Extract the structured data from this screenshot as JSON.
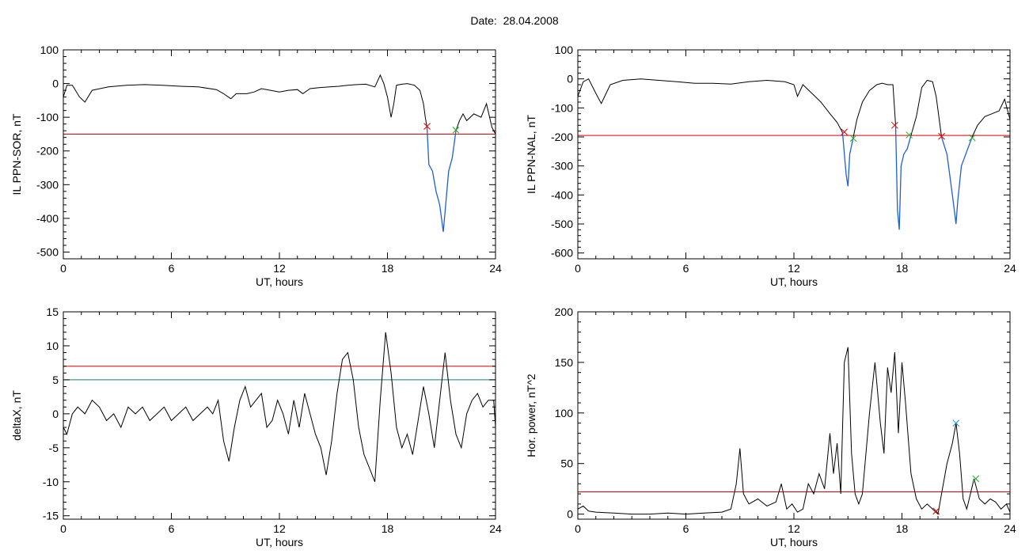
{
  "header": {
    "date_label": "Date:",
    "date_value": "28.04.2008"
  },
  "chart_data": [
    {
      "type": "line",
      "panel": "top-left",
      "xlabel": "UT, hours",
      "ylabel": "IL PPN-SOR, nT",
      "xlim": [
        0,
        24
      ],
      "ylim": [
        -520,
        100
      ],
      "xticks": [
        0,
        6,
        12,
        18,
        24
      ],
      "yticks": [
        100,
        0,
        -100,
        -200,
        -300,
        -400,
        -500
      ],
      "ytick_labels": [
        "100",
        "0",
        "-100",
        "-200",
        "-300",
        "-400",
        "-500"
      ],
      "threshold_lines": [
        {
          "y": -150,
          "color": "#e00000"
        }
      ],
      "series": [
        {
          "color": "#000000",
          "x": [
            0,
            0.2,
            0.5,
            0.9,
            1.2,
            1.6,
            2.5,
            3.5,
            4.5,
            5.5,
            6.5,
            7.5,
            8.5,
            8.9,
            9.3,
            9.6,
            10.2,
            10.6,
            11.0,
            11.5,
            12.0,
            12.5,
            13.0,
            13.3,
            13.7,
            14.2,
            14.8,
            15.3,
            15.8,
            16.3,
            16.8,
            17.3,
            17.6,
            17.8,
            18.0,
            18.2,
            18.35,
            18.5,
            18.8,
            19.1,
            19.5,
            19.8,
            20.0,
            20.1,
            20.2
          ],
          "y": [
            -40,
            -5,
            -5,
            -40,
            -55,
            -20,
            -10,
            -5,
            -3,
            -5,
            -8,
            -10,
            -18,
            -30,
            -45,
            -30,
            -30,
            -25,
            -15,
            -20,
            -25,
            -20,
            -18,
            -30,
            -15,
            -12,
            -10,
            -8,
            -5,
            -3,
            -2,
            -10,
            25,
            0,
            -40,
            -100,
            -60,
            -5,
            -2,
            0,
            -5,
            -20,
            -60,
            -100,
            -130
          ]
        },
        {
          "color": "#1f5fd6",
          "x": [
            20.2,
            20.3,
            20.5,
            20.7,
            20.9,
            21.0,
            21.1,
            21.2,
            21.4,
            21.6,
            21.8
          ],
          "y": [
            -130,
            -240,
            -260,
            -320,
            -360,
            -400,
            -440,
            -380,
            -260,
            -220,
            -140
          ]
        },
        {
          "color": "#000000",
          "x": [
            21.8,
            22.0,
            22.2,
            22.4,
            22.8,
            23.2,
            23.5,
            23.8,
            24.0
          ],
          "y": [
            -140,
            -110,
            -90,
            -110,
            -90,
            -100,
            -60,
            -130,
            -150
          ]
        }
      ],
      "markers": [
        {
          "x": 20.2,
          "y": -127,
          "color": "#e00000"
        },
        {
          "x": 21.8,
          "y": -138,
          "color": "#20b020"
        }
      ]
    },
    {
      "type": "line",
      "panel": "top-right",
      "xlabel": "UT, hours",
      "ylabel": "IL PPN-NAL, nT",
      "xlim": [
        0,
        24
      ],
      "ylim": [
        -620,
        100
      ],
      "xticks": [
        0,
        6,
        12,
        18,
        24
      ],
      "yticks": [
        100,
        0,
        -100,
        -200,
        -300,
        -400,
        -500,
        -600
      ],
      "ytick_labels": [
        "100",
        "0",
        "-100",
        "-200",
        "-300",
        "-400",
        "-500",
        "-600"
      ],
      "threshold_lines": [
        {
          "y": -195,
          "color": "#e00000"
        }
      ],
      "series": [
        {
          "color": "#000000",
          "x": [
            0,
            0.3,
            0.6,
            1.0,
            1.3,
            1.8,
            2.5,
            3.5,
            4.5,
            5.5,
            6.5,
            7.5,
            8.5,
            9.5,
            10.5,
            11.5,
            12.0,
            12.2,
            12.5,
            13.0,
            13.5,
            14.0,
            14.4,
            14.7
          ],
          "y": [
            -60,
            -10,
            0,
            -50,
            -85,
            -20,
            -5,
            0,
            -5,
            -10,
            -15,
            -15,
            -18,
            -10,
            -5,
            -10,
            -20,
            -60,
            -20,
            -50,
            -80,
            -120,
            -150,
            -185
          ]
        },
        {
          "color": "#1f5fd6",
          "x": [
            14.7,
            14.9,
            15.0,
            15.1,
            15.3
          ],
          "y": [
            -185,
            -330,
            -370,
            -260,
            -200
          ]
        },
        {
          "color": "#000000",
          "x": [
            15.3,
            15.5,
            15.8,
            16.2,
            16.6,
            16.9,
            17.2,
            17.5,
            17.65
          ],
          "y": [
            -200,
            -140,
            -80,
            -40,
            -20,
            -15,
            -20,
            -20,
            -160
          ]
        },
        {
          "color": "#1f5fd6",
          "x": [
            17.65,
            17.75,
            17.85,
            17.95,
            18.1,
            18.3,
            18.5
          ],
          "y": [
            -160,
            -450,
            -520,
            -300,
            -260,
            -240,
            -195
          ]
        },
        {
          "color": "#000000",
          "x": [
            18.5,
            18.8,
            19.1,
            19.4,
            19.7,
            19.9,
            20.2
          ],
          "y": [
            -195,
            -130,
            -30,
            -5,
            -10,
            -60,
            -200
          ]
        },
        {
          "color": "#1f5fd6",
          "x": [
            20.2,
            20.5,
            20.8,
            21.0,
            21.1,
            21.3,
            21.6,
            21.9
          ],
          "y": [
            -200,
            -260,
            -400,
            -500,
            -420,
            -300,
            -250,
            -200
          ]
        },
        {
          "color": "#000000",
          "x": [
            21.9,
            22.2,
            22.6,
            23.0,
            23.4,
            23.7,
            24.0
          ],
          "y": [
            -200,
            -160,
            -130,
            -120,
            -110,
            -70,
            -140
          ]
        }
      ],
      "markers": [
        {
          "x": 14.8,
          "y": -183,
          "color": "#e00000"
        },
        {
          "x": 15.3,
          "y": -205,
          "color": "#20b020"
        },
        {
          "x": 17.6,
          "y": -160,
          "color": "#e00000"
        },
        {
          "x": 18.4,
          "y": -193,
          "color": "#20b020"
        },
        {
          "x": 20.2,
          "y": -198,
          "color": "#e00000"
        },
        {
          "x": 21.9,
          "y": -203,
          "color": "#20b020"
        }
      ]
    },
    {
      "type": "line",
      "panel": "bottom-left",
      "xlabel": "UT, hours",
      "ylabel": "deltaX, nT",
      "xlim": [
        0,
        24
      ],
      "ylim": [
        -15.5,
        15
      ],
      "xticks": [
        0,
        6,
        12,
        18,
        24
      ],
      "yticks": [
        15,
        10,
        5,
        0,
        -5,
        -10,
        -15
      ],
      "ytick_labels": [
        "15",
        "10",
        "5",
        "0",
        "-5",
        "-10",
        "-15"
      ],
      "threshold_lines": [
        {
          "y": 7,
          "color": "#e00000"
        },
        {
          "y": 5,
          "color": "#108080"
        }
      ],
      "series": [
        {
          "color": "#000000",
          "x": [
            0,
            0.2,
            0.5,
            0.8,
            1.2,
            1.6,
            2.0,
            2.4,
            2.8,
            3.2,
            3.6,
            4.0,
            4.4,
            4.8,
            5.2,
            5.6,
            6.0,
            6.4,
            6.8,
            7.2,
            7.6,
            8.0,
            8.3,
            8.6,
            8.9,
            9.2,
            9.5,
            9.8,
            10.1,
            10.4,
            10.7,
            11.0,
            11.3,
            11.6,
            11.9,
            12.2,
            12.5,
            12.8,
            13.1,
            13.4,
            13.7,
            14.0,
            14.3,
            14.6,
            14.9,
            15.2,
            15.5,
            15.8,
            16.1,
            16.4,
            16.7,
            17.0,
            17.3,
            17.6,
            17.9,
            18.2,
            18.5,
            18.8,
            19.1,
            19.4,
            19.7,
            20.0,
            20.3,
            20.6,
            20.9,
            21.2,
            21.5,
            21.8,
            22.1,
            22.4,
            22.7,
            23.0,
            23.3,
            23.6,
            23.9,
            24.0
          ],
          "y": [
            -2,
            -3,
            0,
            1,
            0,
            2,
            1,
            -1,
            0,
            -2,
            1,
            0,
            1,
            -1,
            0,
            1,
            -1,
            0,
            1,
            -1,
            0,
            1,
            0,
            2,
            -4,
            -7,
            -2,
            2,
            4,
            1,
            2,
            3,
            -2,
            -1,
            2,
            0,
            -3,
            2,
            -2,
            3,
            0,
            -3,
            -5,
            -9,
            -4,
            3,
            8,
            9,
            5,
            -2,
            -6,
            -8,
            -10,
            2,
            12,
            6,
            -2,
            -5,
            -3,
            -6,
            -1,
            4,
            0,
            -5,
            2,
            9,
            2,
            -3,
            -5,
            0,
            2,
            3,
            1,
            2,
            2,
            -2
          ]
        }
      ]
    },
    {
      "type": "line",
      "panel": "bottom-right",
      "xlabel": "UT, hours",
      "ylabel": "Hor. power, nT^2",
      "xlim": [
        0,
        24
      ],
      "ylim": [
        -5,
        200
      ],
      "xticks": [
        0,
        6,
        12,
        18,
        24
      ],
      "yticks": [
        200,
        150,
        100,
        50,
        0
      ],
      "ytick_labels": [
        "200",
        "150",
        "100",
        "50",
        "0"
      ],
      "threshold_lines": [
        {
          "y": 22,
          "color": "#e00000"
        }
      ],
      "series": [
        {
          "color": "#000000",
          "x": [
            0,
            0.3,
            0.6,
            1.0,
            2.0,
            3.0,
            4.0,
            5.0,
            6.0,
            7.0,
            8.0,
            8.5,
            8.8,
            9.0,
            9.2,
            9.5,
            10.0,
            10.5,
            11.0,
            11.3,
            11.6,
            11.9,
            12.2,
            12.5,
            12.8,
            13.1,
            13.4,
            13.7,
            14.0,
            14.2,
            14.4,
            14.6,
            14.8,
            15.0,
            15.2,
            15.4,
            15.6,
            15.8,
            16.0,
            16.2,
            16.5,
            16.8,
            17.0,
            17.2,
            17.4,
            17.6,
            17.8,
            18.0,
            18.2,
            18.5,
            18.8,
            19.1,
            19.4,
            19.7,
            20.0,
            20.2,
            20.5,
            20.8,
            21.0,
            21.2,
            21.4,
            21.6,
            21.8,
            22.0,
            22.3,
            22.6,
            22.9,
            23.2,
            23.5,
            23.8,
            24.0
          ],
          "y": [
            5,
            8,
            3,
            2,
            1,
            0,
            0,
            1,
            0,
            1,
            2,
            5,
            30,
            65,
            20,
            10,
            15,
            8,
            12,
            30,
            5,
            10,
            2,
            5,
            30,
            20,
            40,
            25,
            80,
            40,
            70,
            20,
            150,
            165,
            60,
            20,
            10,
            20,
            60,
            100,
            150,
            90,
            60,
            145,
            120,
            160,
            80,
            150,
            110,
            40,
            15,
            5,
            10,
            5,
            0,
            20,
            50,
            70,
            90,
            60,
            15,
            5,
            20,
            35,
            15,
            10,
            15,
            12,
            5,
            10,
            2
          ]
        }
      ],
      "markers": [
        {
          "x": 19.9,
          "y": 3,
          "color": "#e00000"
        },
        {
          "x": 21.0,
          "y": 90,
          "color": "#1f8fd6"
        },
        {
          "x": 22.1,
          "y": 35,
          "color": "#20b020"
        }
      ]
    }
  ]
}
